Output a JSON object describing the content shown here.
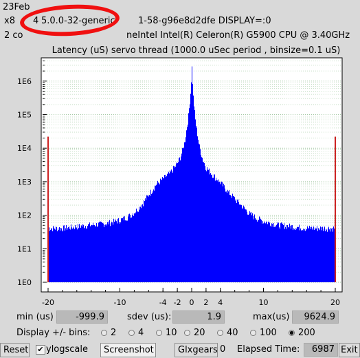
{
  "header": {
    "line1": "23Feb",
    "line2a": "x8",
    "line2b": "4",
    "kernel": "5.0.0-32-generic",
    "line2c": "1-58-g96e8d2dfe  DISPLAY=:0",
    "line3a": "2 co",
    "line3b": "neIntel  Intel(R) Celeron(R) G5900 CPU @ 3.40GHz"
  },
  "chart_data": {
    "type": "bar",
    "title": "Latency (uS) servo thread (1000.0 uSec period , binsize=0.1 uS)",
    "y_scale": "log",
    "ylim": [
      1,
      3000000
    ],
    "y_ticks": [
      "1E0",
      "1E1",
      "1E2",
      "1E3",
      "1E4",
      "1E5",
      "1E6"
    ],
    "xlim": [
      -20,
      20
    ],
    "x_ticks": [
      "-20",
      "-10",
      "-4",
      "-2",
      "0",
      "2",
      "4",
      "10",
      "20"
    ],
    "grid": "horizontal dotted",
    "color": "#0000ff",
    "profile": [
      [
        -20,
        80
      ],
      [
        -19.9,
        40
      ],
      [
        -18,
        40
      ],
      [
        -16,
        45
      ],
      [
        -14,
        50
      ],
      [
        -12,
        55
      ],
      [
        -10,
        70
      ],
      [
        -9,
        85
      ],
      [
        -8,
        120
      ],
      [
        -7,
        200
      ],
      [
        -6,
        400
      ],
      [
        -5,
        800
      ],
      [
        -4,
        1200
      ],
      [
        -3,
        1800
      ],
      [
        -2,
        3500
      ],
      [
        -1.5,
        6000
      ],
      [
        -1,
        15000
      ],
      [
        -0.5,
        80000
      ],
      [
        -0.2,
        400000
      ],
      [
        0,
        2500000
      ],
      [
        0.2,
        300000
      ],
      [
        0.5,
        60000
      ],
      [
        1,
        12000
      ],
      [
        1.5,
        4500
      ],
      [
        2,
        2500
      ],
      [
        3,
        1500
      ],
      [
        4,
        900
      ],
      [
        5,
        500
      ],
      [
        6,
        300
      ],
      [
        7,
        180
      ],
      [
        8,
        110
      ],
      [
        9,
        80
      ],
      [
        10,
        65
      ],
      [
        12,
        50
      ],
      [
        14,
        45
      ],
      [
        16,
        40
      ],
      [
        18,
        40
      ],
      [
        19.9,
        40
      ],
      [
        20,
        80
      ]
    ],
    "edge_spikes": [
      {
        "x": -20,
        "value": 22000
      },
      {
        "x": 20,
        "value": 22000
      }
    ]
  },
  "stats": {
    "min_label": "min (us)",
    "min_value": "-999.9",
    "sdev_label": "sdev (us):",
    "sdev_value": "1.9",
    "max_label": "max(us)",
    "max_value": "9624.9"
  },
  "bins": {
    "label": "Display +/- bins:",
    "options": [
      "2",
      "4",
      "10",
      "20",
      "40",
      "100",
      "200"
    ],
    "selected": "200"
  },
  "footer": {
    "reset": "Reset",
    "ylogscale_label": "ylogscale",
    "ylogscale_checked": "✔",
    "screenshot": "Screenshot",
    "glxgears": "Glxgears",
    "glxgears_count": "0",
    "elapsed_label": "Elapsed Time:",
    "elapsed_value": "6987",
    "exit": "Exit"
  }
}
